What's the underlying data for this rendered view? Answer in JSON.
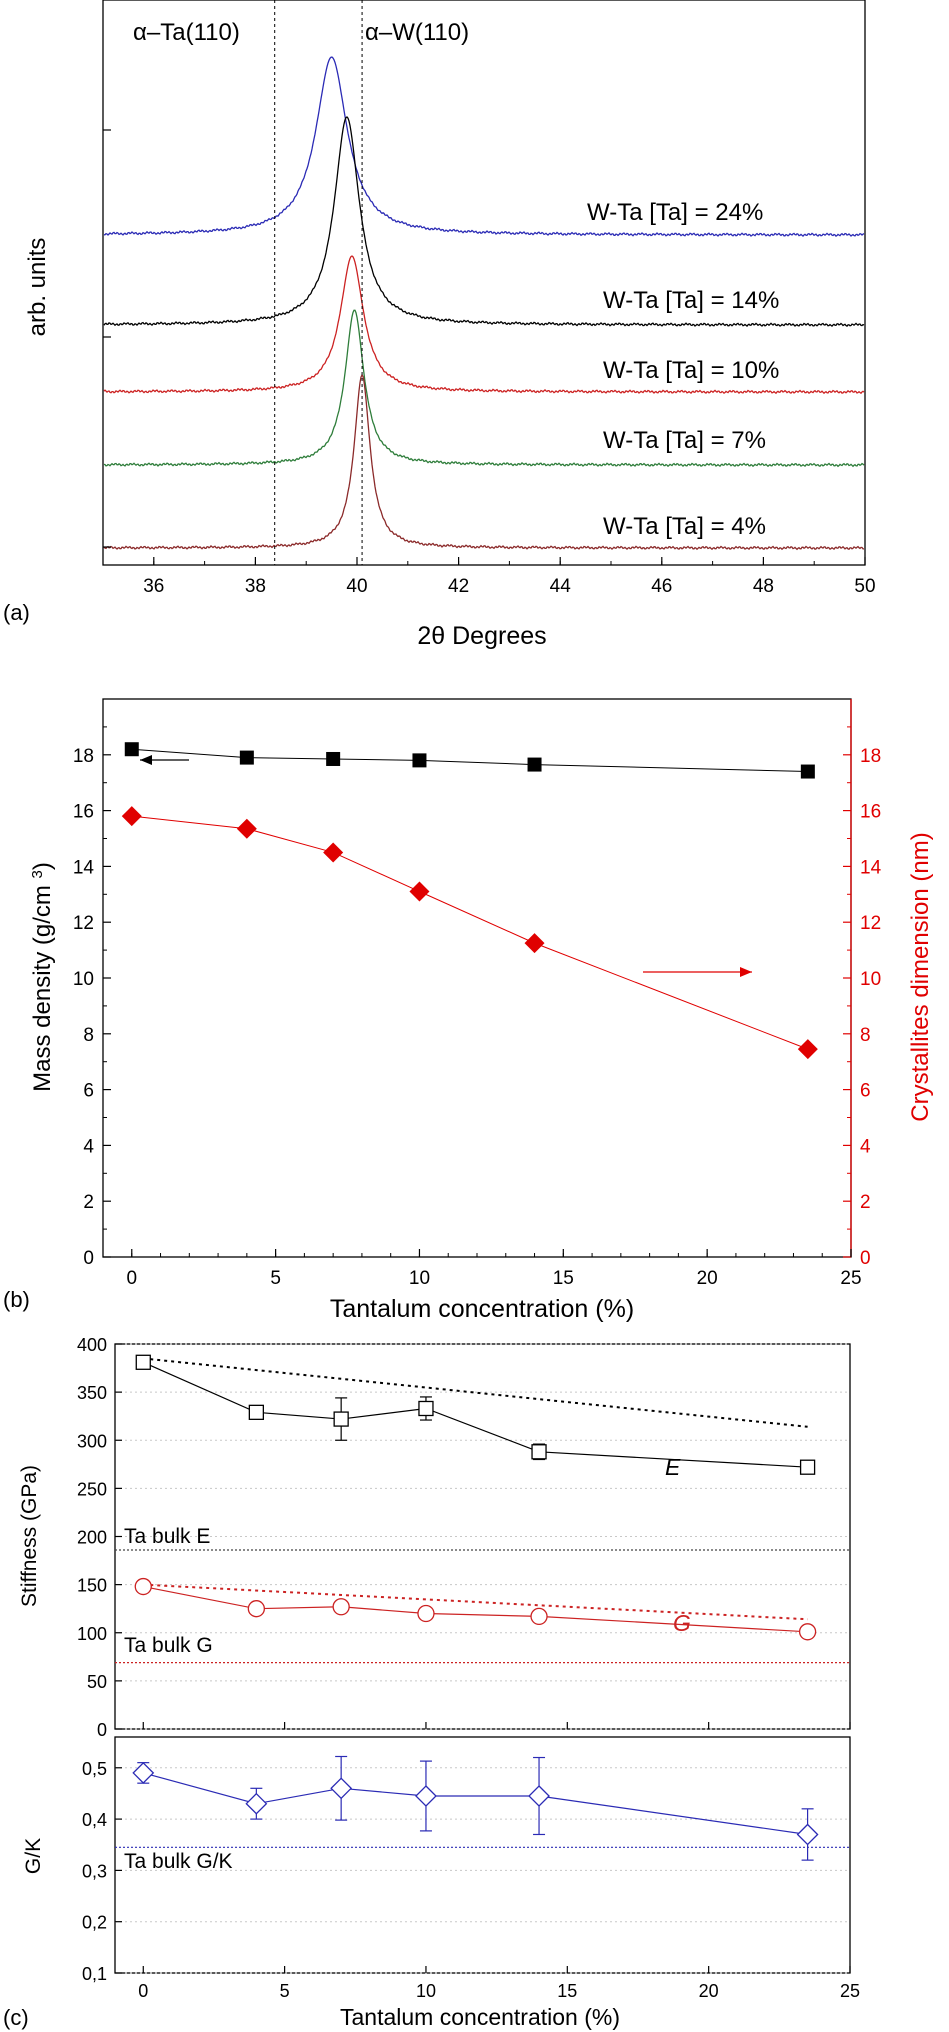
{
  "colors": {
    "black": "#000000",
    "blue": "#2b2bb5",
    "red": "#cc2222",
    "green": "#2e7d3a",
    "brown": "#8b2a2a",
    "marker_red": "#e00000",
    "grid": "#c8c8c8"
  },
  "panel_labels": {
    "a": "(a)",
    "b": "(b)",
    "c": "(c)"
  },
  "chart_data": [
    {
      "panel": "(a)",
      "type": "line",
      "xlabel": "2θ Degrees",
      "ylabel": "arb. units",
      "xlim": [
        35,
        50
      ],
      "xticks": [
        36,
        38,
        40,
        42,
        44,
        46,
        48,
        50
      ],
      "y_ticks_labeled": false,
      "reference_lines": [
        {
          "label": "α–Ta(110)",
          "x": 38.38,
          "style": "dashed"
        },
        {
          "label": "α–W(110)",
          "x": 40.1,
          "style": "dashed"
        }
      ],
      "series": [
        {
          "name": "W-Ta [Ta] = 24%",
          "color": "#2b2bb5",
          "peak": 39.5,
          "fwhm": 0.75
        },
        {
          "name": "W-Ta [Ta] = 14%",
          "color": "#000000",
          "peak": 39.8,
          "fwhm": 0.6
        },
        {
          "name": "W-Ta [Ta] = 10%",
          "color": "#cc2222",
          "peak": 39.9,
          "fwhm": 0.55
        },
        {
          "name": "W-Ta [Ta] = 7%",
          "color": "#2e7d3a",
          "peak": 39.95,
          "fwhm": 0.45
        },
        {
          "name": "W-Ta [Ta] = 4%",
          "color": "#8b2a2a",
          "peak": 40.1,
          "fwhm": 0.38
        }
      ],
      "grid": false
    },
    {
      "panel": "(b)",
      "type": "scatter",
      "xlabel": "Tantalum concentration (%)",
      "ylabel_left": "Mass density (g/cm3)",
      "ylabel_right": "Crystallites dimension (nm)",
      "xlim": [
        -1,
        25
      ],
      "ylim_left": [
        0,
        20
      ],
      "ylim_right": [
        0,
        20
      ],
      "xticks": [
        0,
        5,
        10,
        15,
        20,
        25
      ],
      "yticks": [
        0,
        2,
        4,
        6,
        8,
        10,
        12,
        14,
        16,
        18
      ],
      "series": [
        {
          "name": "Mass density",
          "axis": "left",
          "marker": "square",
          "color": "#000000",
          "x": [
            0,
            4,
            7,
            10,
            14,
            23.5
          ],
          "y": [
            18.2,
            17.9,
            17.85,
            17.8,
            17.65,
            17.4
          ]
        },
        {
          "name": "Crystallites dimension",
          "axis": "right",
          "marker": "diamond",
          "color": "#e00000",
          "x": [
            0,
            4,
            7,
            10,
            14,
            23.5
          ],
          "y": [
            15.8,
            15.35,
            14.5,
            13.1,
            11.25,
            7.45
          ]
        }
      ],
      "grid": false
    },
    {
      "panel": "(c) top",
      "type": "line",
      "ylabel": "Stiffness (GPa)",
      "xlim": [
        -1,
        25
      ],
      "ylim": [
        0,
        400
      ],
      "yticks": [
        0,
        50,
        100,
        150,
        200,
        250,
        300,
        350,
        400
      ],
      "annotations": [
        "Ta bulk E",
        "Ta bulk G",
        "E",
        "G"
      ],
      "reference_lines": [
        {
          "label": "Ta bulk E",
          "y": 186
        },
        {
          "label": "Ta bulk G",
          "y": 69
        }
      ],
      "series": [
        {
          "name": "E",
          "color": "#000000",
          "marker": "square-open",
          "x": [
            0,
            4,
            7,
            10,
            14,
            23.5
          ],
          "y": [
            381,
            329,
            322,
            333,
            288,
            272
          ],
          "err": [
            5,
            6,
            22,
            12,
            8,
            6
          ]
        },
        {
          "name": "G",
          "color": "#cc2222",
          "marker": "circle-open",
          "x": [
            0,
            4,
            7,
            10,
            14,
            23.5
          ],
          "y": [
            148,
            125,
            127,
            120,
            117,
            101
          ],
          "err": [
            5,
            5,
            5,
            5,
            5,
            5
          ]
        }
      ],
      "trend_lines": [
        {
          "of": "E",
          "color": "#000000",
          "x": [
            0,
            23.5
          ],
          "y": [
            385,
            314
          ]
        },
        {
          "of": "G",
          "color": "#cc2222",
          "x": [
            0,
            23.5
          ],
          "y": [
            150,
            114
          ]
        }
      ],
      "grid": true
    },
    {
      "panel": "(c) bottom",
      "type": "line",
      "xlabel": "Tantalum concentration (%)",
      "ylabel": "G/K",
      "xlim": [
        -1,
        25
      ],
      "ylim": [
        0.1,
        0.56
      ],
      "xticks": [
        0,
        5,
        10,
        15,
        20,
        25
      ],
      "ytick_labels": [
        "0,1",
        "0,2",
        "0,3",
        "0,4",
        "0,5"
      ],
      "yticks": [
        0.1,
        0.2,
        0.3,
        0.4,
        0.5
      ],
      "annotations": [
        "Ta bulk G/K"
      ],
      "reference_lines": [
        {
          "label": "Ta bulk G/K",
          "y": 0.345
        }
      ],
      "series": [
        {
          "name": "G/K",
          "color": "#2b2bb5",
          "marker": "diamond-open",
          "x": [
            0,
            4,
            7,
            10,
            14,
            23.5
          ],
          "y": [
            0.49,
            0.43,
            0.46,
            0.445,
            0.445,
            0.37
          ],
          "err": [
            0.02,
            0.03,
            0.062,
            0.068,
            0.075,
            0.05
          ]
        }
      ],
      "grid": true
    }
  ]
}
